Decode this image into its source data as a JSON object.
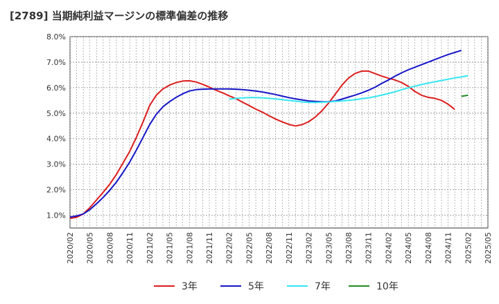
{
  "chart_data": {
    "type": "line",
    "title": "[2789]  当期純利益マージンの標準偏差の推移",
    "xlabel": "",
    "ylabel": "",
    "ylim": [
      0.5,
      8.0
    ],
    "y_ticks": [
      "1.0%",
      "2.0%",
      "3.0%",
      "4.0%",
      "5.0%",
      "6.0%",
      "7.0%",
      "8.0%"
    ],
    "y_tick_values": [
      1,
      2,
      3,
      4,
      5,
      6,
      7,
      8
    ],
    "x_ticks": [
      "2020/02",
      "2020/05",
      "2020/08",
      "2020/11",
      "2021/02",
      "2021/05",
      "2021/08",
      "2021/11",
      "2022/02",
      "2022/05",
      "2022/08",
      "2022/11",
      "2023/02",
      "2023/05",
      "2023/08",
      "2023/11",
      "2024/02",
      "2024/05",
      "2024/08",
      "2024/11",
      "2025/02",
      "2025/05"
    ],
    "grid": true,
    "legend_position": "bottom",
    "series": [
      {
        "name": "3年",
        "color": "#dd1c1c",
        "x": [
          "2020/02",
          "2020/03",
          "2020/04",
          "2020/05",
          "2020/06",
          "2020/07",
          "2020/08",
          "2020/09",
          "2020/10",
          "2020/11",
          "2020/12",
          "2021/01",
          "2021/02",
          "2021/03",
          "2021/04",
          "2021/05",
          "2021/06",
          "2021/07",
          "2021/08",
          "2021/09",
          "2021/10",
          "2021/11",
          "2021/12",
          "2022/01",
          "2022/02",
          "2022/03",
          "2022/04",
          "2022/05",
          "2022/06",
          "2022/07",
          "2022/08",
          "2022/09",
          "2022/10",
          "2022/11",
          "2022/12",
          "2023/01",
          "2023/02",
          "2023/03",
          "2023/04",
          "2023/05",
          "2023/06",
          "2023/07",
          "2023/08",
          "2023/09",
          "2023/10",
          "2023/11",
          "2023/12",
          "2024/01",
          "2024/02",
          "2024/03",
          "2024/04",
          "2024/05",
          "2024/06",
          "2024/07",
          "2024/08",
          "2024/09",
          "2024/10",
          "2024/11",
          "2024/12",
          "2025/01",
          "2025/02"
        ],
        "values": [
          0.88,
          0.92,
          1.05,
          1.3,
          1.6,
          1.9,
          2.22,
          2.6,
          3.05,
          3.5,
          4.05,
          4.65,
          5.3,
          5.7,
          5.95,
          6.1,
          6.2,
          6.26,
          6.27,
          6.22,
          6.13,
          6.02,
          5.9,
          5.8,
          5.68,
          5.57,
          5.43,
          5.3,
          5.16,
          5.04,
          4.9,
          4.77,
          4.66,
          4.56,
          4.5,
          4.55,
          4.67,
          4.85,
          5.1,
          5.4,
          5.75,
          6.1,
          6.38,
          6.56,
          6.65,
          6.65,
          6.55,
          6.45,
          6.37,
          6.3,
          6.2,
          6.05,
          5.85,
          5.7,
          5.62,
          5.58,
          5.5,
          5.35,
          5.15,
          null,
          null
        ]
      },
      {
        "name": "5年",
        "color": "#1414c8",
        "x": [
          "2020/02",
          "2020/03",
          "2020/04",
          "2020/05",
          "2020/06",
          "2020/07",
          "2020/08",
          "2020/09",
          "2020/10",
          "2020/11",
          "2020/12",
          "2021/01",
          "2021/02",
          "2021/03",
          "2021/04",
          "2021/05",
          "2021/06",
          "2021/07",
          "2021/08",
          "2021/09",
          "2021/10",
          "2021/11",
          "2021/12",
          "2022/01",
          "2022/02",
          "2022/03",
          "2022/04",
          "2022/05",
          "2022/06",
          "2022/07",
          "2022/08",
          "2022/09",
          "2022/10",
          "2022/11",
          "2022/12",
          "2023/01",
          "2023/02",
          "2023/03",
          "2023/04",
          "2023/05",
          "2023/06",
          "2023/07",
          "2023/08",
          "2023/09",
          "2023/10",
          "2023/11",
          "2023/12",
          "2024/01",
          "2024/02",
          "2024/03",
          "2024/04",
          "2024/05",
          "2024/06",
          "2024/07",
          "2024/08",
          "2024/09",
          "2024/10",
          "2024/11",
          "2024/12",
          "2025/01",
          "2025/02"
        ],
        "values": [
          0.93,
          0.97,
          1.05,
          1.22,
          1.45,
          1.7,
          1.98,
          2.3,
          2.68,
          3.08,
          3.55,
          4.05,
          4.55,
          4.95,
          5.25,
          5.45,
          5.62,
          5.76,
          5.87,
          5.92,
          5.94,
          5.95,
          5.95,
          5.95,
          5.95,
          5.94,
          5.92,
          5.9,
          5.87,
          5.83,
          5.78,
          5.73,
          5.67,
          5.61,
          5.56,
          5.52,
          5.48,
          5.46,
          5.45,
          5.45,
          5.48,
          5.55,
          5.63,
          5.71,
          5.8,
          5.9,
          6.02,
          6.17,
          6.3,
          6.45,
          6.58,
          6.7,
          6.8,
          6.9,
          7.0,
          7.1,
          7.2,
          7.3,
          7.38,
          7.46,
          null
        ]
      },
      {
        "name": "7年",
        "color": "#33e6f0",
        "x": [
          "2022/02",
          "2022/03",
          "2022/04",
          "2022/05",
          "2022/06",
          "2022/07",
          "2022/08",
          "2022/09",
          "2022/10",
          "2022/11",
          "2022/12",
          "2023/01",
          "2023/02",
          "2023/03",
          "2023/04",
          "2023/05",
          "2023/06",
          "2023/07",
          "2023/08",
          "2023/09",
          "2023/10",
          "2023/11",
          "2023/12",
          "2024/01",
          "2024/02",
          "2024/03",
          "2024/04",
          "2024/05",
          "2024/06",
          "2024/07",
          "2024/08",
          "2024/09",
          "2024/10",
          "2024/11",
          "2024/12",
          "2025/01",
          "2025/02"
        ],
        "values": [
          5.55,
          5.58,
          5.6,
          5.61,
          5.61,
          5.6,
          5.58,
          5.56,
          5.53,
          5.5,
          5.47,
          5.44,
          5.42,
          5.42,
          5.43,
          5.44,
          5.46,
          5.48,
          5.5,
          5.53,
          5.57,
          5.6,
          5.65,
          5.71,
          5.77,
          5.84,
          5.92,
          5.99,
          6.06,
          6.12,
          6.18,
          6.23,
          6.28,
          6.33,
          6.38,
          6.42,
          6.47
        ]
      },
      {
        "name": "10年",
        "color": "#228b22",
        "x": [
          "2025/01",
          "2025/02"
        ],
        "values": [
          5.66,
          5.7
        ]
      }
    ]
  }
}
